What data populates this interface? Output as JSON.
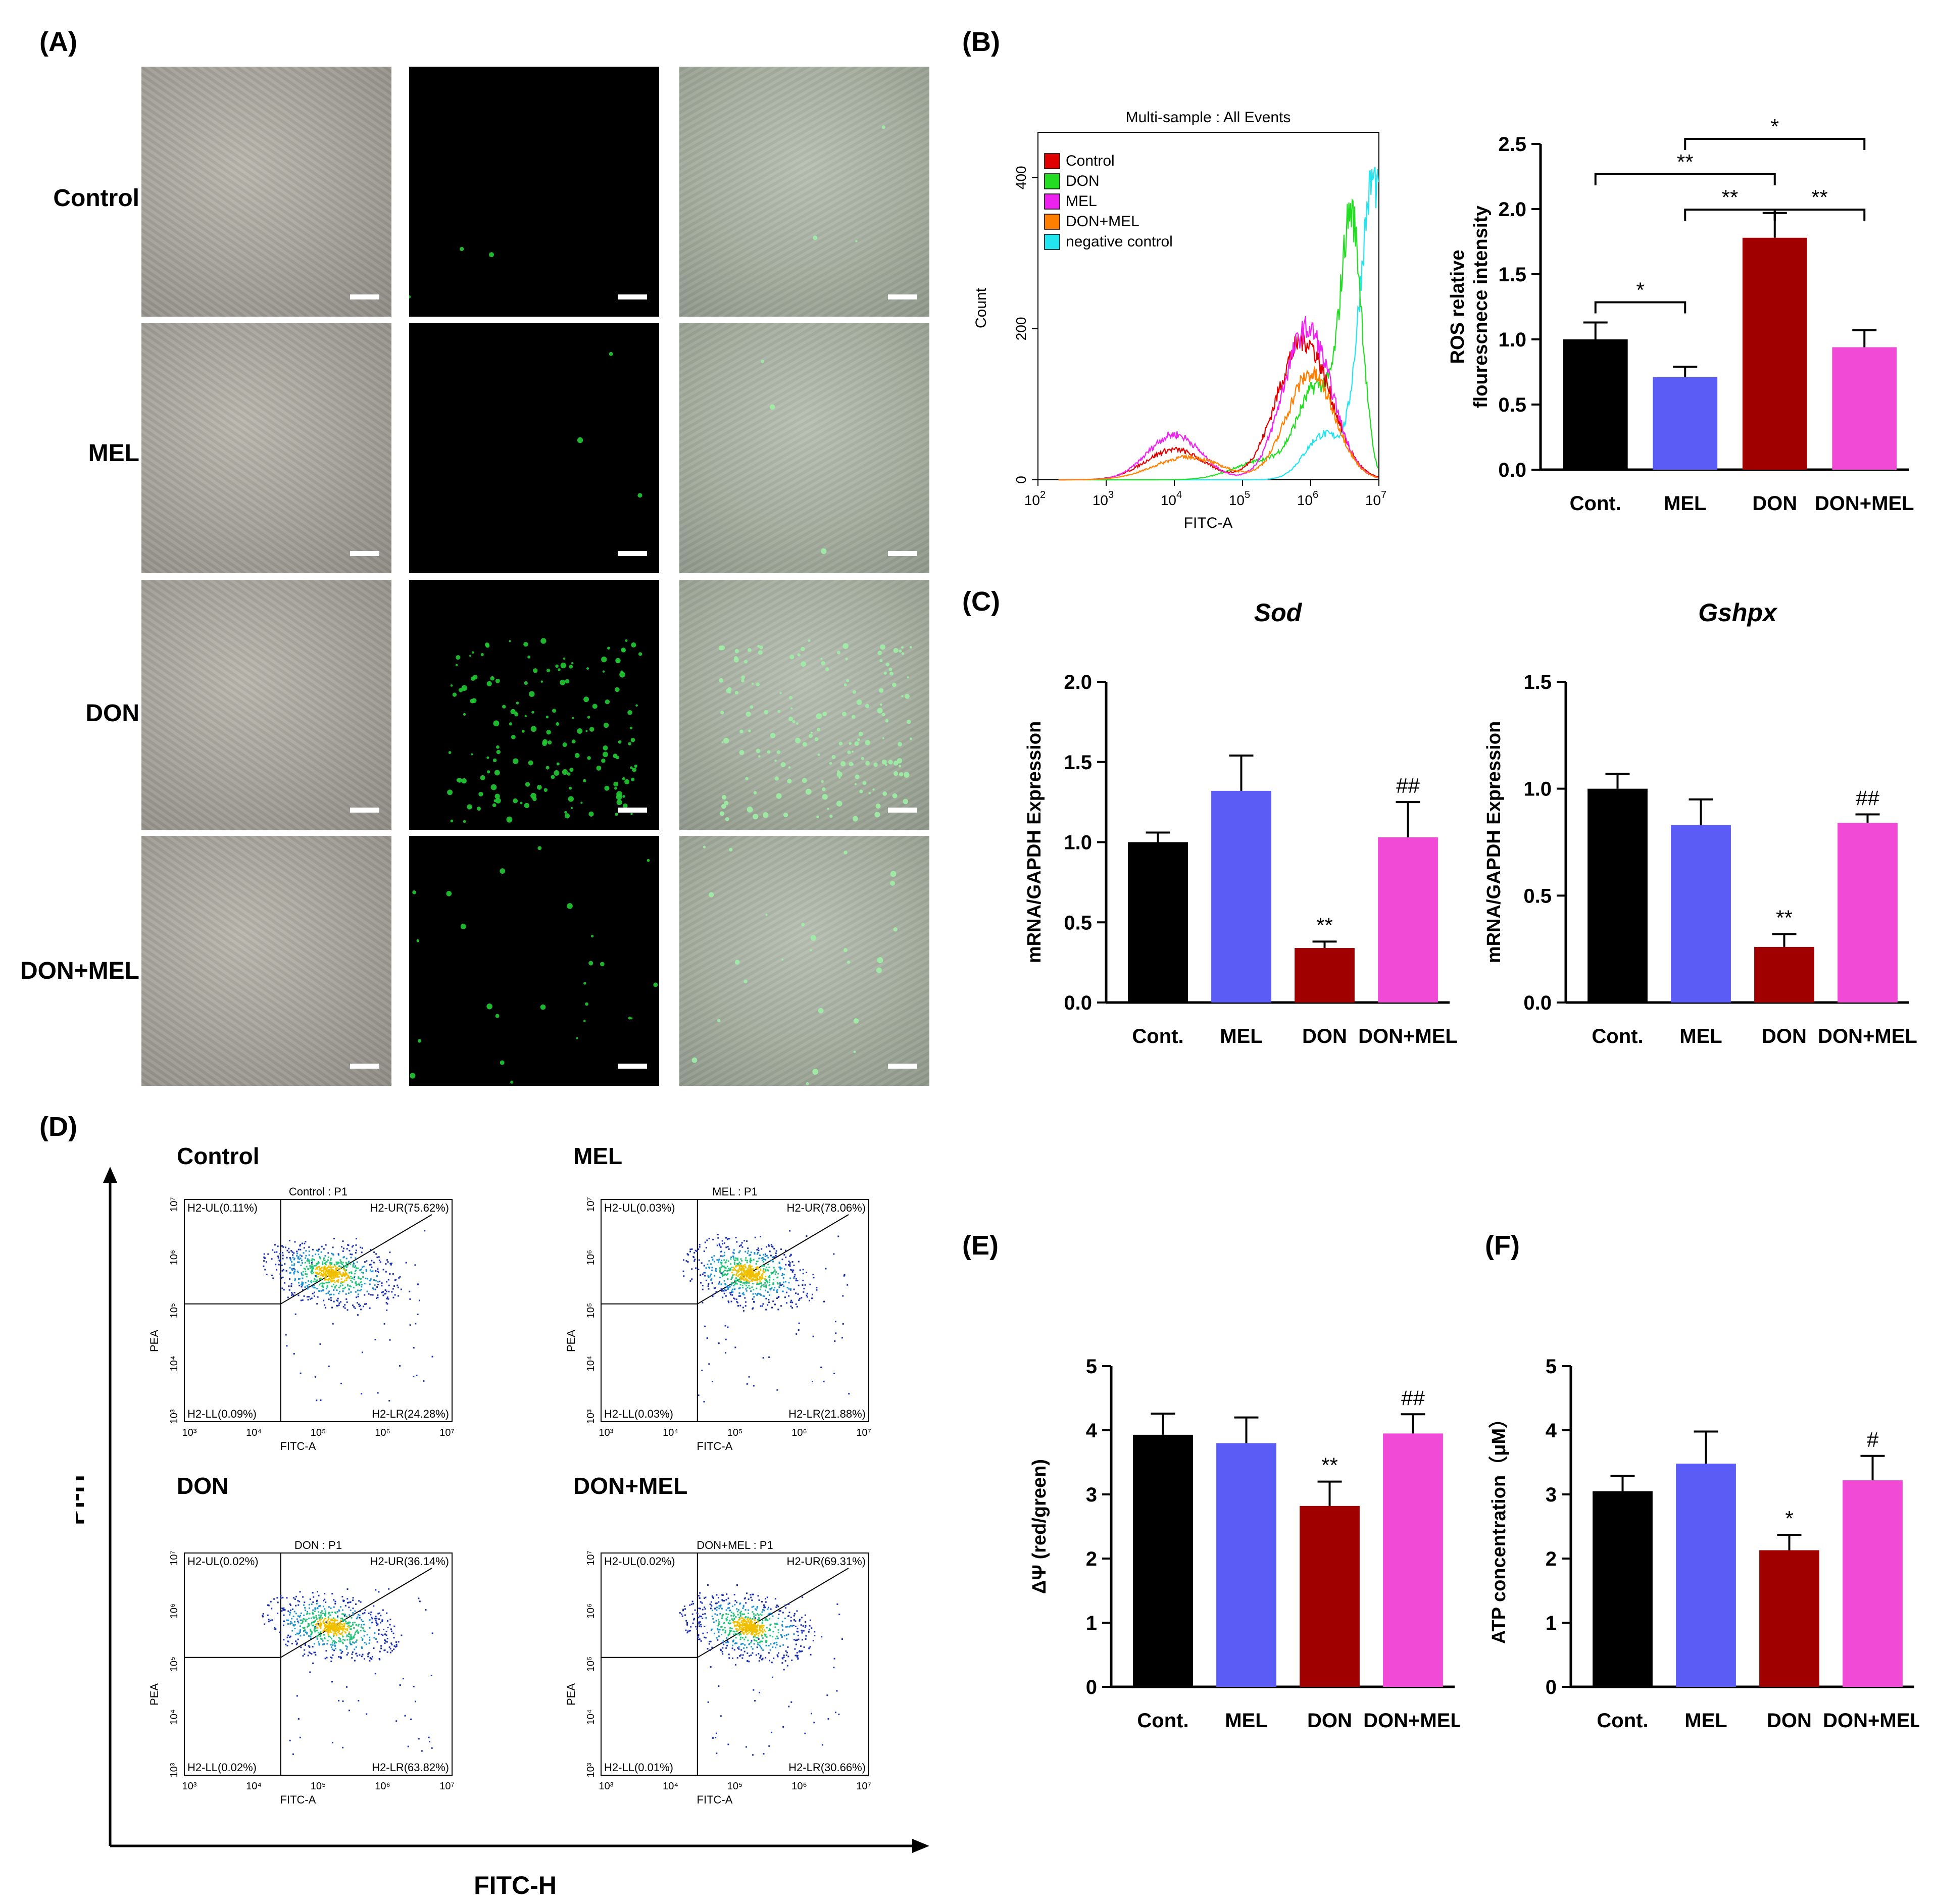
{
  "panels": {
    "A": "(A)",
    "B": "(B)",
    "C": "(C)",
    "D": "(D)",
    "E": "(E)",
    "F": "(F)"
  },
  "microscopy": {
    "rows": [
      "Control",
      "MEL",
      "DON",
      "DON+MEL"
    ],
    "green_density": [
      3,
      3,
      160,
      25
    ]
  },
  "colors": {
    "cont": "#000000",
    "mel": "#5b5bf5",
    "don": "#a10000",
    "donmel": "#f04ad6"
  },
  "flow_histogram": {
    "title": "Multi-sample : All Events",
    "ylabel": "Count",
    "xlabel": "FITC-A",
    "yticks": [
      "0",
      "200",
      "400"
    ],
    "xticks": [
      "2",
      "3",
      "4",
      "5",
      "6",
      "7"
    ],
    "legend": [
      {
        "label": "Control",
        "color": "#e00000"
      },
      {
        "label": "DON",
        "color": "#22dd22"
      },
      {
        "label": "MEL",
        "color": "#ee22ee"
      },
      {
        "label": "DON+MEL",
        "color": "#ff7f00"
      },
      {
        "label": "negative control",
        "color": "#22e5f0"
      }
    ]
  },
  "apoptosis": {
    "ylabel": "PI-H",
    "xlabel": "FITC-H",
    "axis_y": "PEA",
    "axis_x": "FITC-A",
    "ticks": [
      "10³",
      "10⁴",
      "10⁵",
      "10⁶",
      "10⁷"
    ],
    "plots": [
      {
        "group": "Control",
        "title": "Control : P1",
        "ul": "H2-UL(0.11%)",
        "ur": "H2-UR(75.62%)",
        "ll": "H2-LL(0.09%)",
        "lr": "H2-LR(24.28%)"
      },
      {
        "group": "MEL",
        "title": "MEL : P1",
        "ul": "H2-UL(0.03%)",
        "ur": "H2-UR(78.06%)",
        "ll": "H2-LL(0.03%)",
        "lr": "H2-LR(21.88%)"
      },
      {
        "group": "DON",
        "title": "DON : P1",
        "ul": "H2-UL(0.02%)",
        "ur": "H2-UR(36.14%)",
        "ll": "H2-LL(0.02%)",
        "lr": "H2-LR(63.82%)"
      },
      {
        "group": "DON+MEL",
        "title": "DON+MEL : P1",
        "ul": "H2-UL(0.02%)",
        "ur": "H2-UR(69.31%)",
        "ll": "H2-LL(0.01%)",
        "lr": "H2-LR(30.66%)"
      }
    ]
  },
  "chart_data": [
    {
      "id": "ros",
      "type": "bar",
      "title": "",
      "ylabel": "ROS relative flourescnece intensity",
      "categories": [
        "Cont.",
        "MEL",
        "DON",
        "DON+MEL"
      ],
      "values": [
        1.0,
        0.71,
        1.78,
        0.94
      ],
      "errors": [
        0.13,
        0.08,
        0.19,
        0.13
      ],
      "ylim": [
        0,
        2.5
      ],
      "yticks": [
        "0.0",
        "0.5",
        "1.0",
        "1.5",
        "2.0",
        "2.5"
      ],
      "annotations": [],
      "brackets": [
        {
          "from": 0,
          "to": 1,
          "label": "*",
          "level": 0
        },
        {
          "from": 0,
          "to": 2,
          "label": "**",
          "level": 2
        },
        {
          "from": 1,
          "to": 2,
          "label": "**",
          "level": 1
        },
        {
          "from": 2,
          "to": 3,
          "label": "**",
          "level": 1
        },
        {
          "from": 1,
          "to": 3,
          "label": "*",
          "level": 3
        }
      ]
    },
    {
      "id": "sod",
      "type": "bar",
      "title": "Sod",
      "ylabel": "mRNA/GAPDH Expression",
      "categories": [
        "Cont.",
        "MEL",
        "DON",
        "DON+MEL"
      ],
      "values": [
        1.0,
        1.32,
        0.34,
        1.03
      ],
      "errors": [
        0.06,
        0.22,
        0.04,
        0.22
      ],
      "ylim": [
        0,
        2.0
      ],
      "yticks": [
        "0.0",
        "0.5",
        "1.0",
        "1.5",
        "2.0"
      ],
      "annotations": [
        "",
        "",
        "**",
        "##"
      ],
      "brackets": []
    },
    {
      "id": "gshpx",
      "type": "bar",
      "title": "Gshpx",
      "ylabel": "mRNA/GAPDH Expression",
      "categories": [
        "Cont.",
        "MEL",
        "DON",
        "DON+MEL"
      ],
      "values": [
        1.0,
        0.83,
        0.26,
        0.84
      ],
      "errors": [
        0.07,
        0.12,
        0.06,
        0.04
      ],
      "ylim": [
        0,
        1.5
      ],
      "yticks": [
        "0.0",
        "0.5",
        "1.0",
        "1.5"
      ],
      "annotations": [
        "",
        "",
        "**",
        "##"
      ],
      "brackets": []
    },
    {
      "id": "mmp",
      "type": "bar",
      "title": "",
      "ylabel": "ΔΨ (red/green)",
      "categories": [
        "Cont.",
        "MEL",
        "DON",
        "DON+MEL"
      ],
      "values": [
        3.93,
        3.8,
        2.82,
        3.95
      ],
      "errors": [
        0.33,
        0.4,
        0.38,
        0.3
      ],
      "ylim": [
        0,
        5
      ],
      "yticks": [
        "0",
        "1",
        "2",
        "3",
        "4",
        "5"
      ],
      "annotations": [
        "",
        "",
        "**",
        "##"
      ],
      "brackets": []
    },
    {
      "id": "atp",
      "type": "bar",
      "title": "",
      "ylabel": "ATP concentration（μM）",
      "categories": [
        "Cont.",
        "MEL",
        "DON",
        "DON+MEL"
      ],
      "values": [
        3.05,
        3.48,
        2.13,
        3.22
      ],
      "errors": [
        0.24,
        0.5,
        0.24,
        0.38
      ],
      "ylim": [
        0,
        5
      ],
      "yticks": [
        "0",
        "1",
        "2",
        "3",
        "4",
        "5"
      ],
      "annotations": [
        "",
        "",
        "*",
        "#"
      ],
      "brackets": []
    }
  ]
}
